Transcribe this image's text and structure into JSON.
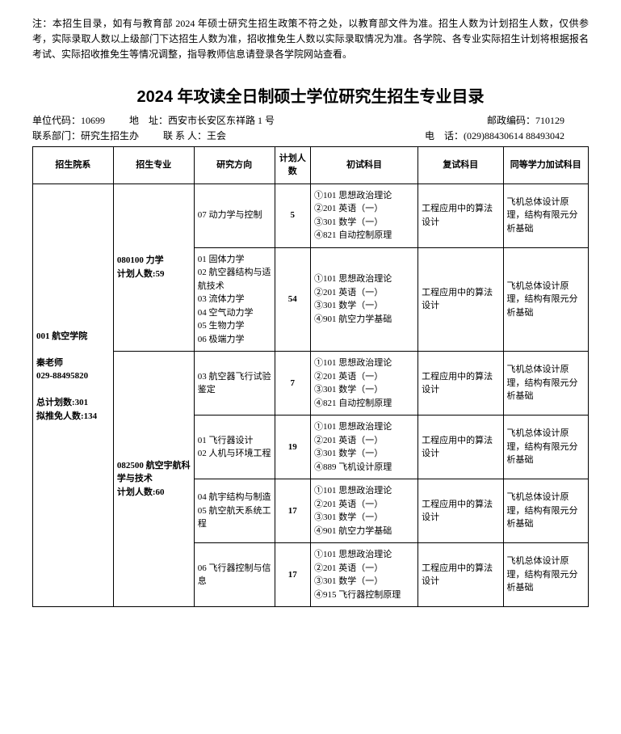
{
  "note": "注：本招生目录，如有与教育部 2024 年硕士研究生招生政策不符之处，以教育部文件为准。招生人数为计划招生人数，仅供参考，实际录取人数以上级部门下达招生人数为准，招收推免生人数以实际录取情况为准。各学院、各专业实际招生计划将根据报名考试、实际招收推免生等情况调整，指导教师信息请登录各学院网站查看。",
  "title": "2024 年攻读全日制硕士学位研究生招生专业目录",
  "info": {
    "unit_code_label": "单位代码：",
    "unit_code": "10699",
    "address_label": "地　址：",
    "address": "西安市长安区东祥路 1 号",
    "postcode_label": "邮政编码：",
    "postcode": "710129",
    "contact_dept_label": "联系部门：",
    "contact_dept": "研究生招生办",
    "contact_person_label": "联 系 人：",
    "contact_person": "王会",
    "phone_label": "电　话：",
    "phone": "(029)88430614 88493042"
  },
  "headers": {
    "dept": "招生院系",
    "major": "招生专业",
    "direction": "研究方向",
    "plan": "计划人数",
    "exam1": "初试科目",
    "exam2": "复试科目",
    "exam3": "同等学力加试科目"
  },
  "dept_info": {
    "name": "001 航空学院",
    "teacher": "秦老师",
    "phone": "029-88495820",
    "total_plan": "总计划数:301",
    "rec_exempt": "拟推免人数:134"
  },
  "major1": {
    "name": "080100 力学",
    "plan": "计划人数:59"
  },
  "major2": {
    "name": "082500 航空宇航科学与技术",
    "plan": "计划人数:60"
  },
  "rows": [
    {
      "direction": "07 动力学与控制",
      "plan": "5",
      "exam1": "①101 思想政治理论\n②201 英语（一）\n③301 数学（一）\n④821 自动控制原理",
      "exam2": "工程应用中的算法设计",
      "exam3": "飞机总体设计原理，结构有限元分析基础"
    },
    {
      "direction": "01 固体力学\n02 航空器结构与适航技术\n03 流体力学\n04 空气动力学\n05 生物力学\n06 极端力学",
      "plan": "54",
      "exam1": "①101 思想政治理论\n②201 英语（一）\n③301 数学（一）\n④901 航空力学基础",
      "exam2": "工程应用中的算法设计",
      "exam3": "飞机总体设计原理，结构有限元分析基础"
    },
    {
      "direction": "03 航空器飞行试验鉴定",
      "plan": "7",
      "exam1": "①101 思想政治理论\n②201 英语（一）\n③301 数学（一）\n④821 自动控制原理",
      "exam2": "工程应用中的算法设计",
      "exam3": "飞机总体设计原理，结构有限元分析基础"
    },
    {
      "direction": "01 飞行器设计\n02 人机与环境工程",
      "plan": "19",
      "exam1": "①101 思想政治理论\n②201 英语（一）\n③301 数学（一）\n④889 飞机设计原理",
      "exam2": "工程应用中的算法设计",
      "exam3": "飞机总体设计原理，结构有限元分析基础"
    },
    {
      "direction": "04 航宇结构与制造\n05 航空航天系统工程",
      "plan": "17",
      "exam1": "①101 思想政治理论\n②201 英语（一）\n③301 数学（一）\n④901 航空力学基础",
      "exam2": "工程应用中的算法设计",
      "exam3": "飞机总体设计原理，结构有限元分析基础"
    },
    {
      "direction": "06 飞行器控制与信息",
      "plan": "17",
      "exam1": "①101 思想政治理论\n②201 英语（一）\n③301 数学（一）\n④915 飞行器控制原理",
      "exam2": "工程应用中的算法设计",
      "exam3": "飞机总体设计原理，结构有限元分析基础"
    }
  ]
}
